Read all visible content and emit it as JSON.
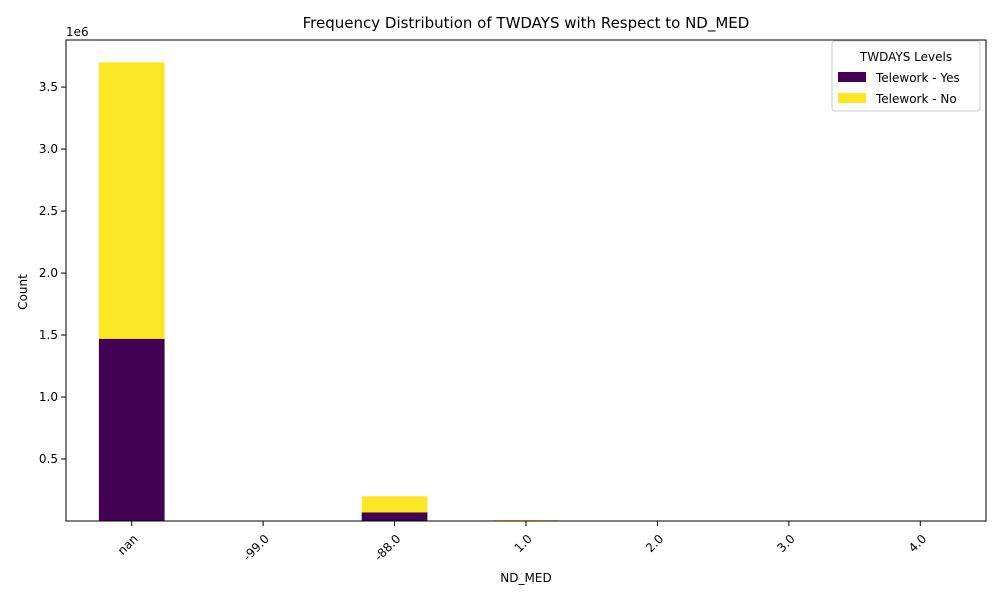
{
  "chart_data": {
    "type": "bar",
    "stacked": true,
    "title": "Frequency Distribution of TWDAYS with Respect to ND_MED",
    "xlabel": "ND_MED",
    "ylabel": "Count",
    "offset_label": "1e6",
    "categories": [
      "nan",
      "-99.0",
      "-88.0",
      "1.0",
      "2.0",
      "3.0",
      "4.0"
    ],
    "series": [
      {
        "name": "Telework - Yes",
        "color": "#440154",
        "values": [
          1470000,
          0,
          70000,
          2000,
          0,
          0,
          0
        ]
      },
      {
        "name": "Telework - No",
        "color": "#fde725",
        "values": [
          2230000,
          0,
          130000,
          5000,
          0,
          0,
          0
        ]
      }
    ],
    "ylim": [
      0,
      3880000
    ],
    "yticks": [
      500000,
      1000000,
      1500000,
      2000000,
      2500000,
      3000000,
      3500000
    ],
    "ytick_labels": [
      "0.5",
      "1.0",
      "1.5",
      "2.0",
      "2.5",
      "3.0",
      "3.5"
    ],
    "legend": {
      "title": "TWDAYS Levels",
      "position": "top-right"
    },
    "grid": false
  }
}
